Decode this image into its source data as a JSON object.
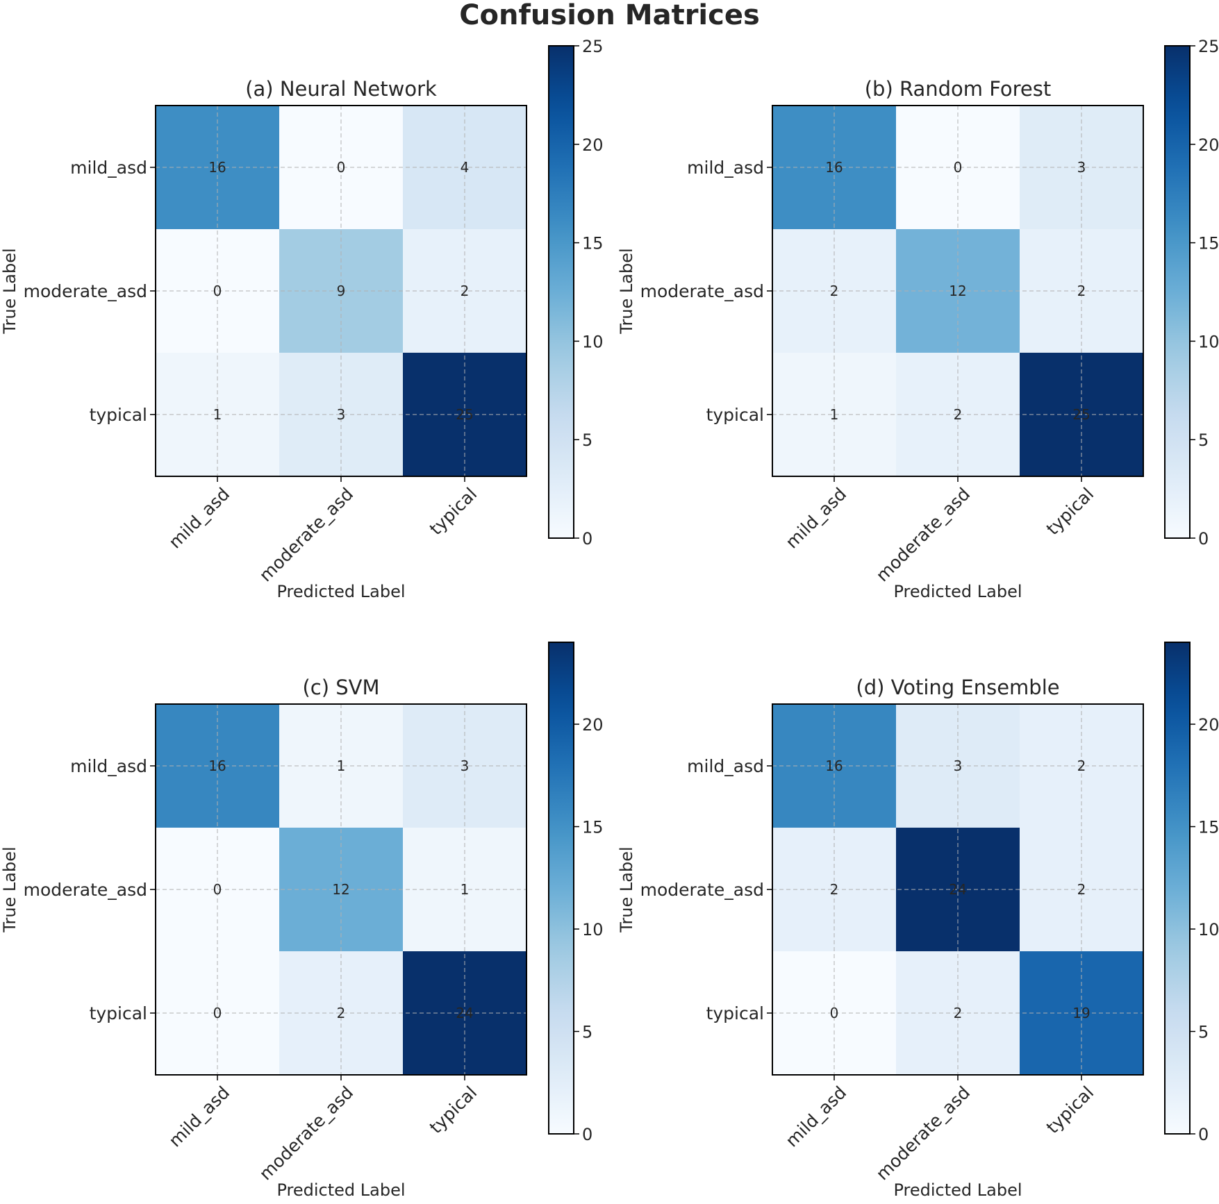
{
  "title": "Confusion Matrices",
  "colormap": [
    "#f7fbff",
    "#deebf7",
    "#c6dbef",
    "#9ecae1",
    "#6baed6",
    "#4292c6",
    "#2171b5",
    "#08519c",
    "#08306b"
  ],
  "chart_data": [
    {
      "type": "heatmap",
      "title": "(a) Neural Network",
      "xlabel": "Predicted Label",
      "ylabel": "True Label",
      "row_labels": [
        "mild_asd",
        "moderate_asd",
        "typical"
      ],
      "col_labels": [
        "mild_asd",
        "moderate_asd",
        "typical"
      ],
      "matrix": [
        [
          16,
          0,
          4
        ],
        [
          0,
          9,
          2
        ],
        [
          1,
          3,
          25
        ]
      ],
      "vmin": 0,
      "vmax": 25,
      "colorbar_ticks": [
        "0",
        "5",
        "10",
        "15",
        "20",
        "25"
      ]
    },
    {
      "type": "heatmap",
      "title": "(b) Random Forest",
      "xlabel": "Predicted Label",
      "ylabel": "True Label",
      "row_labels": [
        "mild_asd",
        "moderate_asd",
        "typical"
      ],
      "col_labels": [
        "mild_asd",
        "moderate_asd",
        "typical"
      ],
      "matrix": [
        [
          16,
          0,
          3
        ],
        [
          2,
          12,
          2
        ],
        [
          1,
          2,
          25
        ]
      ],
      "vmin": 0,
      "vmax": 25,
      "colorbar_ticks": [
        "0",
        "5",
        "10",
        "15",
        "20",
        "25"
      ]
    },
    {
      "type": "heatmap",
      "title": "(c) SVM",
      "xlabel": "Predicted Label",
      "ylabel": "True Label",
      "row_labels": [
        "mild_asd",
        "moderate_asd",
        "typical"
      ],
      "col_labels": [
        "mild_asd",
        "moderate_asd",
        "typical"
      ],
      "matrix": [
        [
          16,
          1,
          3
        ],
        [
          0,
          12,
          1
        ],
        [
          0,
          2,
          24
        ]
      ],
      "vmin": 0,
      "vmax": 24,
      "colorbar_ticks": [
        "0",
        "5",
        "10",
        "15",
        "20"
      ]
    },
    {
      "type": "heatmap",
      "title": "(d) Voting Ensemble",
      "xlabel": "Predicted Label",
      "ylabel": "True Label",
      "row_labels": [
        "mild_asd",
        "moderate_asd",
        "typical"
      ],
      "col_labels": [
        "mild_asd",
        "moderate_asd",
        "typical"
      ],
      "matrix": [
        [
          16,
          3,
          2
        ],
        [
          2,
          24,
          2
        ],
        [
          0,
          2,
          19
        ]
      ],
      "vmin": 0,
      "vmax": 24,
      "colorbar_ticks": [
        "0",
        "5",
        "10",
        "15",
        "20"
      ]
    }
  ]
}
